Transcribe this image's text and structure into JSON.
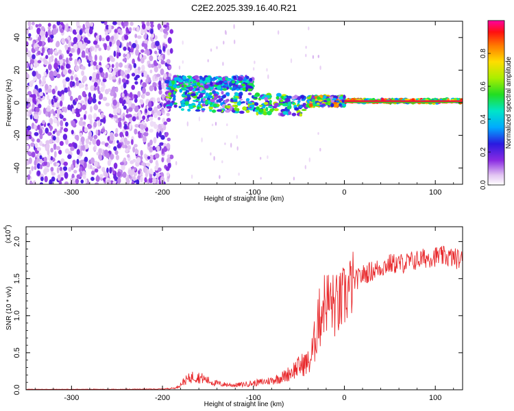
{
  "title": "C2E2.2025.339.16.40.R21",
  "chart_data": [
    {
      "type": "heatmap",
      "name": "spectrogram",
      "xlabel": "Height of straight line (km)",
      "ylabel": "Frequency (Hz)",
      "xlim": [
        -350,
        130
      ],
      "ylim": [
        -50,
        50
      ],
      "xticks": [
        "-300",
        "-200",
        "-100",
        "0",
        "100"
      ],
      "xtick_values": [
        -300,
        -200,
        -100,
        0,
        100
      ],
      "yticks": [
        "40",
        "20",
        "0",
        "-20",
        "-40"
      ],
      "ytick_values": [
        40,
        20,
        0,
        -20,
        -40
      ],
      "noise_region_x": [
        -350,
        -190
      ],
      "signal_bands": [
        {
          "x_range": [
            -195,
            -100
          ],
          "freq_range": [
            8,
            16
          ],
          "peak_amplitude": 0.5
        },
        {
          "x_range": [
            -195,
            -40
          ],
          "freq_range": [
            -8,
            4
          ],
          "peak_amplitude": 0.6
        },
        {
          "x_range": [
            -40,
            0
          ],
          "freq_range": [
            -2,
            4
          ],
          "peak_amplitude": 0.8
        },
        {
          "x_range": [
            0,
            130
          ],
          "freq_range": [
            0,
            2
          ],
          "peak_amplitude": 1.0
        }
      ],
      "colorbar": {
        "label": "Normalized spectral amplitude",
        "ticks": [
          "0.0",
          "0.2",
          "0.4",
          "0.6",
          "0.8"
        ],
        "tick_values": [
          0.0,
          0.2,
          0.4,
          0.6,
          0.8
        ],
        "range": [
          0,
          1
        ]
      }
    },
    {
      "type": "line",
      "name": "snr",
      "xlabel": "Height of straight line (km)",
      "ylabel": "SNR (10 * v/v)",
      "scale_label": "(x10",
      "scale_exponent": "4",
      "scale_label_close": ")",
      "xlim": [
        -350,
        130
      ],
      "ylim": [
        0,
        2.2
      ],
      "xticks": [
        "-300",
        "-200",
        "-100",
        "0",
        "100"
      ],
      "xtick_values": [
        -300,
        -200,
        -100,
        0,
        100
      ],
      "yticks": [
        "0.0",
        "0.5",
        "1.0",
        "1.5",
        "2.0"
      ],
      "ytick_values": [
        0.0,
        0.5,
        1.0,
        1.5,
        2.0
      ],
      "series": [
        {
          "name": "SNR",
          "color": "#e8282b",
          "x": [
            -350,
            -300,
            -250,
            -200,
            -185,
            -175,
            -165,
            -155,
            -145,
            -135,
            -120,
            -100,
            -80,
            -65,
            -55,
            -45,
            -38,
            -32,
            -28,
            -24,
            -20,
            -15,
            -10,
            -5,
            0,
            10,
            20,
            30,
            40,
            50,
            60,
            70,
            80,
            90,
            100,
            110,
            120,
            130
          ],
          "y": [
            0.005,
            0.005,
            0.005,
            0.008,
            0.02,
            0.1,
            0.15,
            0.12,
            0.08,
            0.06,
            0.05,
            0.07,
            0.1,
            0.15,
            0.22,
            0.28,
            0.3,
            0.55,
            0.9,
            1.15,
            1.2,
            1.18,
            1.12,
            1.15,
            1.25,
            1.45,
            1.55,
            1.6,
            1.65,
            1.7,
            1.7,
            1.72,
            1.75,
            1.78,
            1.8,
            1.8,
            1.78,
            1.75
          ]
        }
      ]
    }
  ]
}
